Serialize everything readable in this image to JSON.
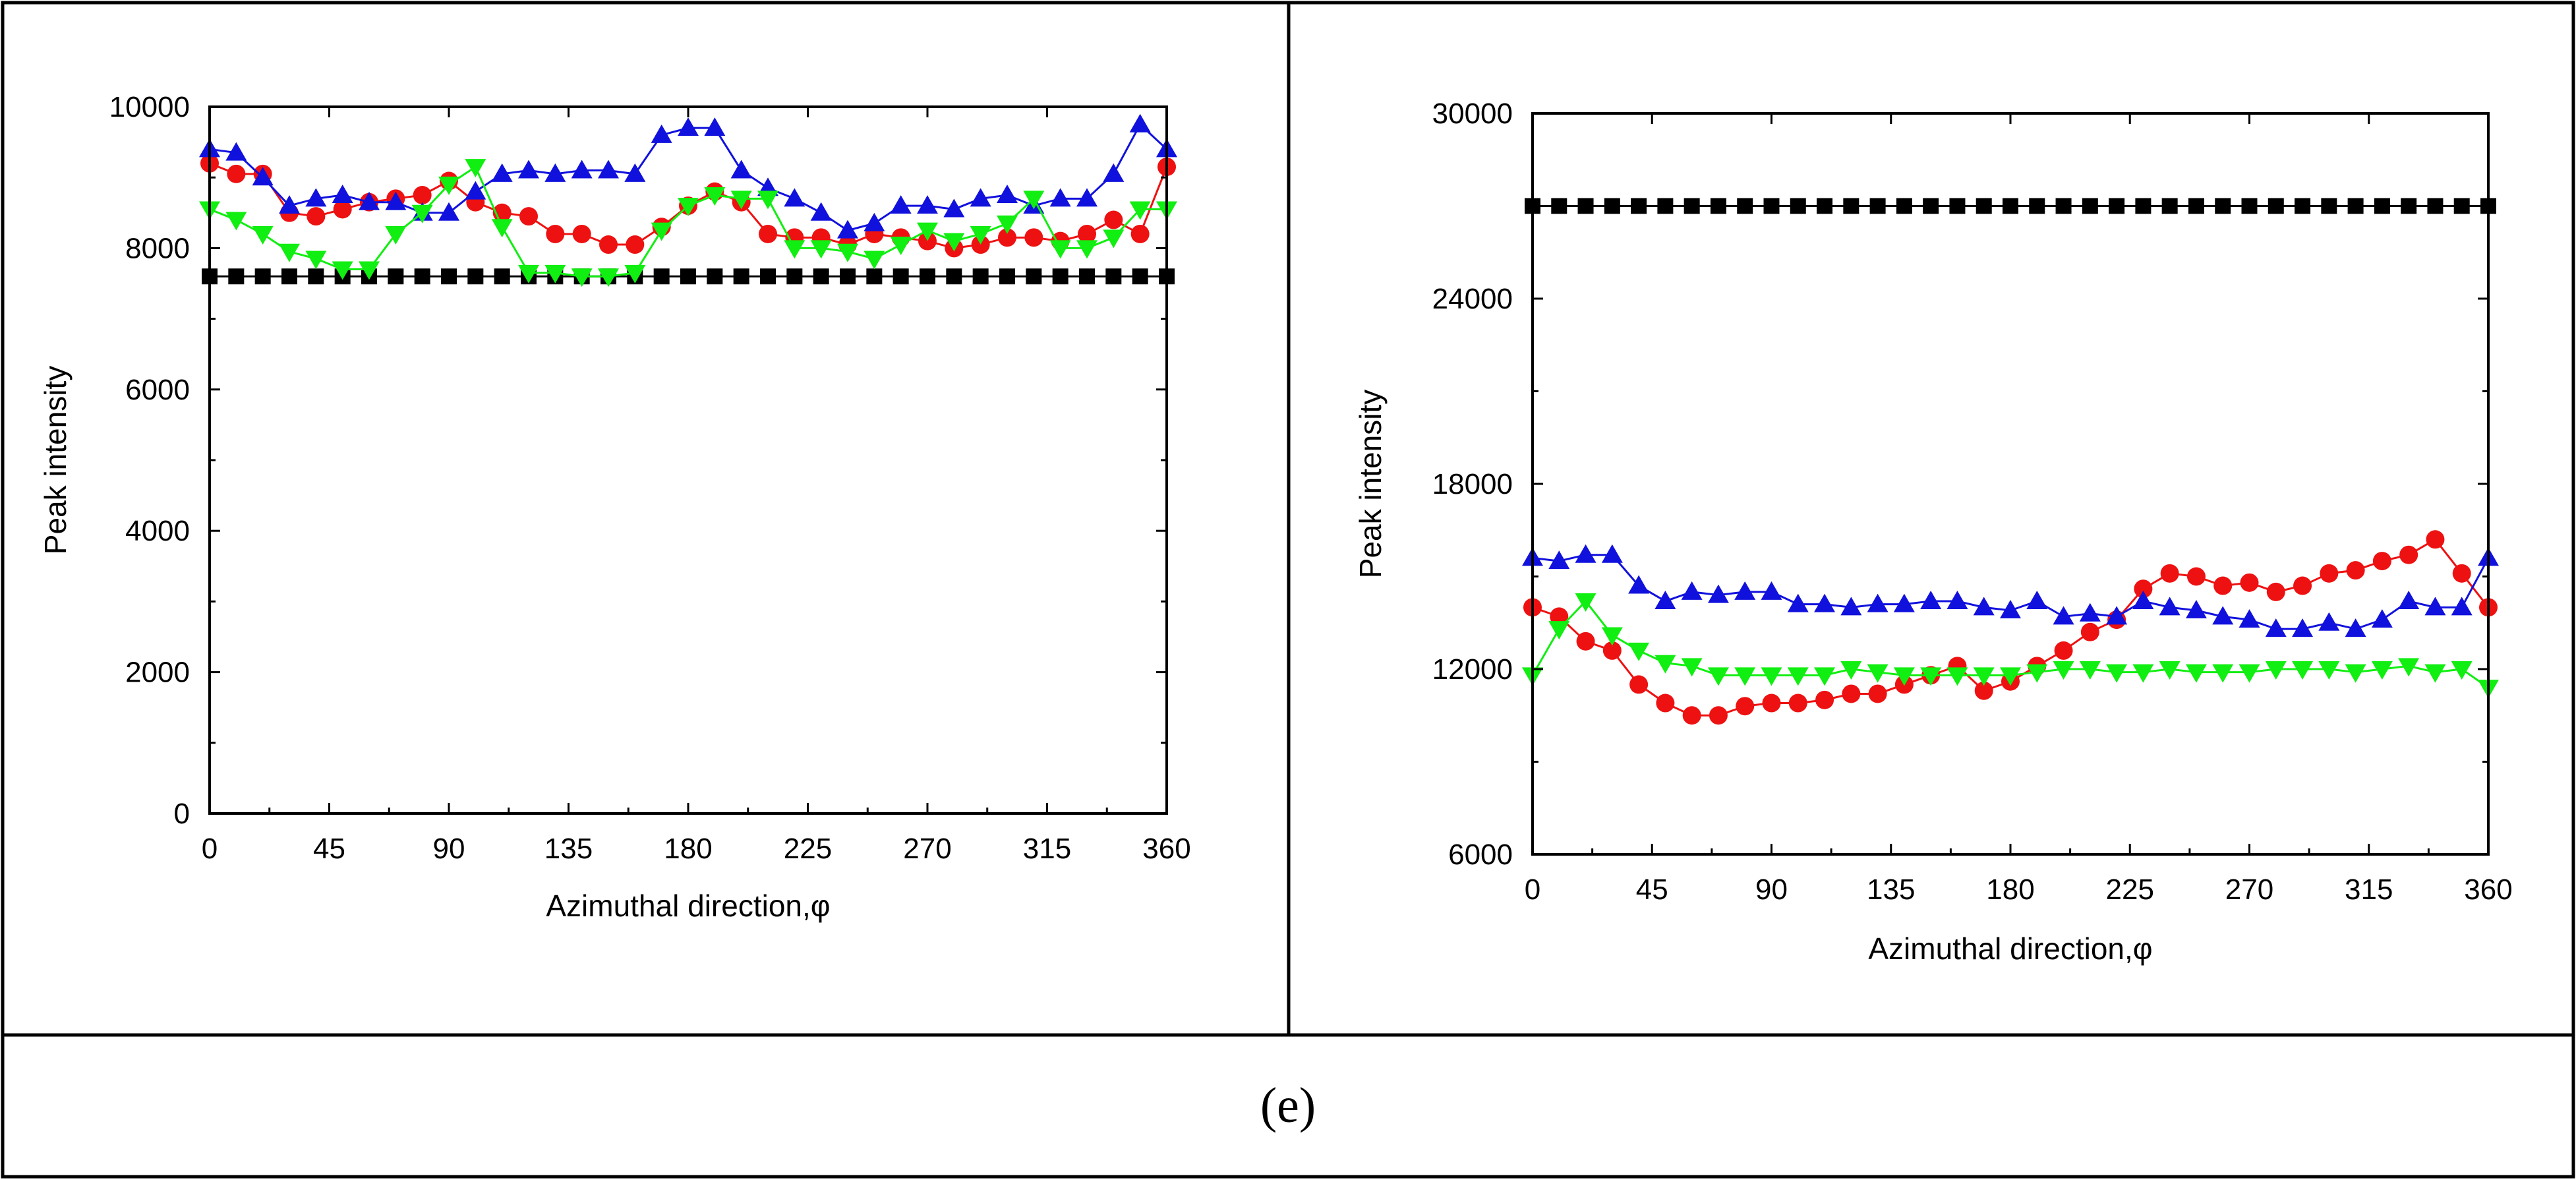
{
  "caption": "(e)",
  "colors": {
    "black": "#000000",
    "red": "#ee1111",
    "blue": "#1111dd",
    "green": "#11ee11"
  },
  "chart_data": [
    {
      "type": "line",
      "title": "",
      "xlabel": "Azimuthal direction,φ",
      "ylabel": "Peak intensity",
      "xlim": [
        0,
        360
      ],
      "ylim": [
        0,
        10000
      ],
      "xticks": [
        0,
        45,
        90,
        135,
        180,
        225,
        270,
        315,
        360
      ],
      "yticks": [
        0,
        2000,
        4000,
        6000,
        8000,
        10000
      ],
      "x": [
        0,
        10,
        20,
        30,
        40,
        50,
        60,
        70,
        80,
        90,
        100,
        110,
        120,
        130,
        140,
        150,
        160,
        170,
        180,
        190,
        200,
        210,
        220,
        230,
        240,
        250,
        260,
        270,
        280,
        290,
        300,
        310,
        320,
        330,
        340,
        350,
        360
      ],
      "series": [
        {
          "name": "black-squares",
          "color": "#000000",
          "marker": "square",
          "values": [
            7600,
            7600,
            7600,
            7600,
            7600,
            7600,
            7600,
            7600,
            7600,
            7600,
            7600,
            7600,
            7600,
            7600,
            7600,
            7600,
            7600,
            7600,
            7600,
            7600,
            7600,
            7600,
            7600,
            7600,
            7600,
            7600,
            7600,
            7600,
            7600,
            7600,
            7600,
            7600,
            7600,
            7600,
            7600,
            7600,
            7600
          ]
        },
        {
          "name": "red-circles",
          "color": "#ee1111",
          "marker": "circle",
          "values": [
            9200,
            9050,
            9050,
            8500,
            8450,
            8550,
            8650,
            8700,
            8750,
            8950,
            8650,
            8500,
            8450,
            8200,
            8200,
            8050,
            8050,
            8300,
            8600,
            8800,
            8650,
            8200,
            8150,
            8150,
            8050,
            8200,
            8150,
            8100,
            8000,
            8050,
            8150,
            8150,
            8100,
            8200,
            8400,
            8200,
            9150
          ]
        },
        {
          "name": "blue-up-triangles",
          "color": "#1111dd",
          "marker": "triangle-up",
          "values": [
            9400,
            9350,
            9000,
            8600,
            8700,
            8750,
            8650,
            8650,
            8500,
            8500,
            8800,
            9050,
            9100,
            9050,
            9100,
            9100,
            9050,
            9600,
            9700,
            9700,
            9100,
            8850,
            8700,
            8500,
            8250,
            8350,
            8600,
            8600,
            8550,
            8700,
            8750,
            8600,
            8700,
            8700,
            9050,
            9750,
            9400
          ]
        },
        {
          "name": "green-down-triangles",
          "color": "#11ee11",
          "marker": "triangle-down",
          "values": [
            8550,
            8400,
            8200,
            7950,
            7850,
            7700,
            7700,
            8200,
            8500,
            8900,
            9150,
            8300,
            7650,
            7650,
            7600,
            7600,
            7650,
            8250,
            8600,
            8750,
            8700,
            8700,
            8000,
            8000,
            7950,
            7850,
            8050,
            8250,
            8100,
            8200,
            8350,
            8700,
            8000,
            8000,
            8150,
            8550,
            8550
          ]
        }
      ]
    },
    {
      "type": "line",
      "title": "",
      "xlabel": "Azimuthal direction,φ",
      "ylabel": "Peak intensity",
      "xlim": [
        0,
        360
      ],
      "ylim": [
        6000,
        30000
      ],
      "xticks": [
        0,
        45,
        90,
        135,
        180,
        225,
        270,
        315,
        360
      ],
      "yticks": [
        6000,
        12000,
        18000,
        24000,
        30000
      ],
      "x": [
        0,
        10,
        20,
        30,
        40,
        50,
        60,
        70,
        80,
        90,
        100,
        110,
        120,
        130,
        140,
        150,
        160,
        170,
        180,
        190,
        200,
        210,
        220,
        230,
        240,
        250,
        260,
        270,
        280,
        290,
        300,
        310,
        320,
        330,
        340,
        350,
        360
      ],
      "series": [
        {
          "name": "black-squares",
          "color": "#000000",
          "marker": "square",
          "values": [
            27000,
            27000,
            27000,
            27000,
            27000,
            27000,
            27000,
            27000,
            27000,
            27000,
            27000,
            27000,
            27000,
            27000,
            27000,
            27000,
            27000,
            27000,
            27000,
            27000,
            27000,
            27000,
            27000,
            27000,
            27000,
            27000,
            27000,
            27000,
            27000,
            27000,
            27000,
            27000,
            27000,
            27000,
            27000,
            27000,
            27000
          ]
        },
        {
          "name": "red-circles",
          "color": "#ee1111",
          "marker": "circle",
          "values": [
            14000,
            13700,
            12900,
            12600,
            11500,
            10900,
            10500,
            10500,
            10800,
            10900,
            10900,
            11000,
            11200,
            11200,
            11500,
            11800,
            12100,
            11300,
            11600,
            12100,
            12600,
            13200,
            13600,
            14600,
            15100,
            15000,
            14700,
            14800,
            14500,
            14700,
            15100,
            15200,
            15500,
            15700,
            16200,
            15100,
            14000
          ]
        },
        {
          "name": "blue-up-triangles",
          "color": "#1111dd",
          "marker": "triangle-up",
          "values": [
            15600,
            15500,
            15700,
            15700,
            14700,
            14200,
            14500,
            14400,
            14500,
            14500,
            14100,
            14100,
            14000,
            14100,
            14100,
            14200,
            14200,
            14000,
            13900,
            14200,
            13700,
            13800,
            13700,
            14200,
            14000,
            13900,
            13700,
            13600,
            13300,
            13300,
            13500,
            13300,
            13600,
            14200,
            14000,
            14000,
            15600
          ]
        },
        {
          "name": "green-down-triangles",
          "color": "#11ee11",
          "marker": "triangle-down",
          "values": [
            11800,
            13300,
            14200,
            13100,
            12600,
            12200,
            12100,
            11800,
            11800,
            11800,
            11800,
            11800,
            12000,
            11900,
            11800,
            11800,
            11800,
            11800,
            11800,
            11900,
            12000,
            12000,
            11900,
            11900,
            12000,
            11900,
            11900,
            11900,
            12000,
            12000,
            12000,
            11900,
            12000,
            12100,
            11900,
            12000,
            11400
          ]
        }
      ]
    }
  ]
}
